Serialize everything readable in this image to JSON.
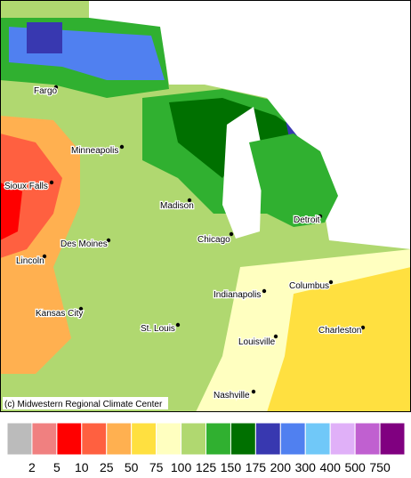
{
  "map": {
    "credit": "(c) Midwestern Regional Climate Center",
    "cities": [
      "Fargo",
      "Minneapolis",
      "Sioux Falls",
      "Madison",
      "Detroit",
      "Des Moines",
      "Chicago",
      "Lincoln",
      "Indianapolis",
      "Columbus",
      "Kansas City",
      "St. Louis",
      "Louisville",
      "Charleston",
      "Nashville"
    ],
    "legend": {
      "colors": [
        "#bbbbbb",
        "#f08080",
        "#ff0000",
        "#ff6040",
        "#ffb050",
        "#ffe040",
        "#ffffc0",
        "#b0d870",
        "#30b030",
        "#007000",
        "#3838b0",
        "#5080f0",
        "#70c8f8",
        "#e0b0f8",
        "#c060d0",
        "#800080"
      ],
      "labels": [
        2,
        5,
        10,
        25,
        50,
        75,
        100,
        125,
        150,
        175,
        200,
        300,
        400,
        500,
        750
      ]
    }
  }
}
